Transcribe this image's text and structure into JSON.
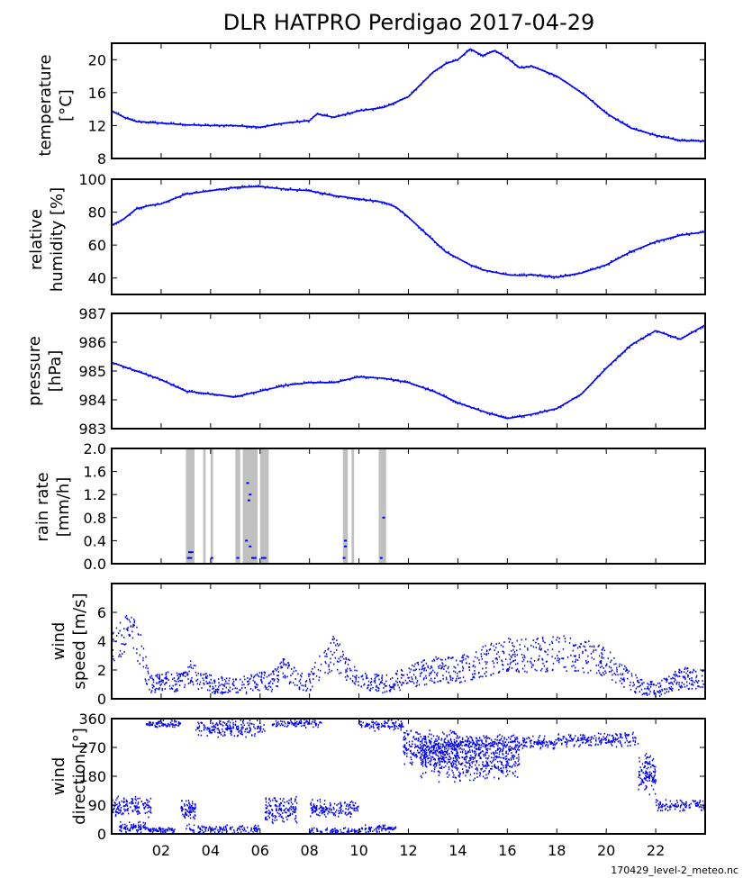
{
  "figure": {
    "title": "DLR HATPRO  Perdigao  2017-04-29",
    "footer": "170429_level-2_meteo.nc",
    "x_range": [
      0,
      24
    ],
    "x_tick_labels": [
      "02",
      "04",
      "06",
      "08",
      "10",
      "12",
      "14",
      "16",
      "18",
      "20",
      "22"
    ],
    "x_tick_values": [
      2,
      4,
      6,
      8,
      10,
      12,
      14,
      16,
      18,
      20,
      22
    ]
  },
  "chart_data": [
    {
      "type": "line",
      "ylabel_lines": [
        "temperature",
        "[°C]"
      ],
      "ylim": [
        8,
        22
      ],
      "yticks": [
        8,
        12,
        16,
        20
      ],
      "ytick_labels": [
        "8",
        "12",
        "16",
        "20"
      ],
      "x": [
        0,
        0.5,
        1,
        2,
        3,
        4,
        5,
        6,
        7,
        8,
        8.3,
        9,
        10,
        11,
        12,
        12.5,
        13,
        13.5,
        14,
        14.5,
        15,
        15.5,
        16,
        16.5,
        17,
        18,
        18.5,
        19,
        19.5,
        20,
        21,
        22,
        23,
        24
      ],
      "values": [
        13.8,
        13,
        12.5,
        12.3,
        12.1,
        12,
        12,
        11.8,
        12.3,
        12.6,
        13.4,
        13,
        13.8,
        14.2,
        15.5,
        17,
        18.5,
        19.5,
        20,
        21.3,
        20.5,
        21.1,
        20.2,
        19,
        19.2,
        18,
        17,
        16,
        14.8,
        13.5,
        11.7,
        10.8,
        10.2,
        10.1
      ]
    },
    {
      "type": "line",
      "ylabel_lines": [
        "relative",
        "humidity [%]"
      ],
      "ylim": [
        30,
        100
      ],
      "yticks": [
        40,
        60,
        80,
        100
      ],
      "ytick_labels": [
        "40",
        "60",
        "80",
        "100"
      ],
      "x": [
        0,
        0.5,
        1,
        1.5,
        2,
        3,
        4,
        5,
        6,
        7,
        8,
        9,
        10,
        11,
        11.5,
        12,
        12.5,
        13,
        13.5,
        14,
        14.5,
        15,
        16,
        16.5,
        17,
        18,
        19,
        20,
        21,
        22,
        23,
        24
      ],
      "values": [
        72,
        76,
        82,
        84,
        85,
        91,
        93,
        95,
        95.5,
        94,
        93,
        90,
        88,
        86,
        83,
        77,
        70,
        63,
        56,
        52,
        48,
        45,
        42,
        41.5,
        42,
        40.5,
        43,
        48,
        56,
        62,
        66,
        68
      ]
    },
    {
      "type": "line",
      "ylabel_lines": [
        "pressure",
        "[hPa]"
      ],
      "ylim": [
        983,
        987
      ],
      "yticks": [
        983,
        984,
        985,
        986,
        987
      ],
      "ytick_labels": [
        "983",
        "984",
        "985",
        "986",
        "987"
      ],
      "x": [
        0,
        1,
        2,
        3,
        4,
        5,
        6,
        7,
        8,
        9,
        10,
        11,
        12,
        13,
        14,
        15,
        16,
        17,
        18,
        19,
        20,
        21,
        22,
        23,
        24
      ],
      "values": [
        985.3,
        985,
        984.7,
        984.3,
        984.2,
        984.1,
        984.3,
        984.5,
        984.6,
        984.6,
        984.8,
        984.75,
        984.6,
        984.3,
        983.9,
        983.6,
        983.35,
        983.5,
        983.7,
        984.2,
        985.1,
        985.9,
        986.4,
        986.1,
        986.6
      ]
    },
    {
      "type": "bar",
      "ylabel_lines": [
        "rain rate",
        "[mm/h]"
      ],
      "ylim": [
        0,
        2
      ],
      "yticks": [
        0,
        0.4,
        0.8,
        1.2,
        1.6,
        2.0
      ],
      "ytick_labels": [
        "0.0",
        "0.4",
        "0.8",
        "1.2",
        "1.6",
        "2.0"
      ],
      "rain_flag_intervals": [
        [
          3.0,
          3.35
        ],
        [
          3.7,
          3.8
        ],
        [
          4.0,
          4.1
        ],
        [
          5.0,
          5.2
        ],
        [
          5.3,
          5.9
        ],
        [
          6.0,
          6.35
        ],
        [
          9.35,
          9.55
        ],
        [
          9.7,
          9.8
        ],
        [
          10.8,
          11.1
        ]
      ],
      "points": [
        [
          3.1,
          0.1
        ],
        [
          3.2,
          0.1
        ],
        [
          3.25,
          0.2
        ],
        [
          3.15,
          0.2
        ],
        [
          4.05,
          0.1
        ],
        [
          5.1,
          0.1
        ],
        [
          5.45,
          0.4
        ],
        [
          5.5,
          1.4
        ],
        [
          5.55,
          1.1
        ],
        [
          5.6,
          1.2
        ],
        [
          5.6,
          0.3
        ],
        [
          5.7,
          0.1
        ],
        [
          5.8,
          0.1
        ],
        [
          6.1,
          0.1
        ],
        [
          6.2,
          0.1
        ],
        [
          9.4,
          0.1
        ],
        [
          9.45,
          0.3
        ],
        [
          9.45,
          0.4
        ],
        [
          10.9,
          0.1
        ],
        [
          11.0,
          0.8
        ]
      ]
    },
    {
      "type": "scatter",
      "ylabel_lines": [
        "wind",
        "speed [m/s]"
      ],
      "ylim": [
        0,
        8
      ],
      "yticks": [
        0,
        2,
        4,
        6
      ],
      "ytick_labels": [
        "0",
        "2",
        "4",
        "6"
      ],
      "x": [
        0,
        0.5,
        1,
        1.3,
        1.6,
        2,
        3,
        3.2,
        3.5,
        4,
        5,
        6,
        6.5,
        7,
        7.5,
        8,
        8.5,
        9,
        9.5,
        10,
        11,
        12,
        13,
        14,
        15,
        16,
        17,
        18,
        19,
        20,
        20.5,
        21,
        21.5,
        22,
        23,
        24
      ],
      "values": [
        4,
        4.5,
        4.2,
        2.5,
        1,
        1.2,
        1.2,
        2,
        1.4,
        1,
        0.8,
        1.2,
        1.2,
        2,
        1.3,
        1.2,
        2.5,
        3.2,
        2.2,
        1.2,
        1,
        1.5,
        2,
        2,
        2.6,
        3,
        3,
        3.2,
        3,
        2.5,
        1.8,
        1.2,
        0.8,
        0.6,
        1.4,
        1.5
      ]
    },
    {
      "type": "scatter",
      "ylabel_lines": [
        "wind",
        "direction [°]"
      ],
      "ylim": [
        0,
        360
      ],
      "yticks": [
        0,
        90,
        180,
        270,
        360
      ],
      "ytick_labels": [
        "0",
        "90",
        "180",
        "270",
        "360"
      ],
      "clusters": [
        {
          "x0": 0,
          "x1": 1.6,
          "y0": 50,
          "y1": 120
        },
        {
          "x0": 0.3,
          "x1": 1.5,
          "y0": 0,
          "y1": 40
        },
        {
          "x0": 1.4,
          "x1": 2.8,
          "y0": 330,
          "y1": 360
        },
        {
          "x0": 1.5,
          "x1": 2.6,
          "y0": 0,
          "y1": 20
        },
        {
          "x0": 2.8,
          "x1": 3.4,
          "y0": 40,
          "y1": 110
        },
        {
          "x0": 3.4,
          "x1": 6.2,
          "y0": 300,
          "y1": 360
        },
        {
          "x0": 3.0,
          "x1": 6.0,
          "y0": 0,
          "y1": 30
        },
        {
          "x0": 6.2,
          "x1": 7.5,
          "y0": 30,
          "y1": 120
        },
        {
          "x0": 6.5,
          "x1": 8.5,
          "y0": 330,
          "y1": 360
        },
        {
          "x0": 8.0,
          "x1": 10.0,
          "y0": 50,
          "y1": 110
        },
        {
          "x0": 8.0,
          "x1": 10.0,
          "y0": 0,
          "y1": 20
        },
        {
          "x0": 10.0,
          "x1": 11.8,
          "y0": 320,
          "y1": 360
        },
        {
          "x0": 10.0,
          "x1": 11.5,
          "y0": 0,
          "y1": 30
        },
        {
          "x0": 11.8,
          "x1": 14.0,
          "y0": 210,
          "y1": 330
        },
        {
          "x0": 12.5,
          "x1": 16.5,
          "y0": 160,
          "y1": 320
        },
        {
          "x0": 14.0,
          "x1": 18.0,
          "y0": 260,
          "y1": 310
        },
        {
          "x0": 18.0,
          "x1": 21.3,
          "y0": 270,
          "y1": 320
        },
        {
          "x0": 21.3,
          "x1": 22.0,
          "y0": 120,
          "y1": 260
        },
        {
          "x0": 22.0,
          "x1": 24.0,
          "y0": 70,
          "y1": 110
        }
      ]
    }
  ]
}
